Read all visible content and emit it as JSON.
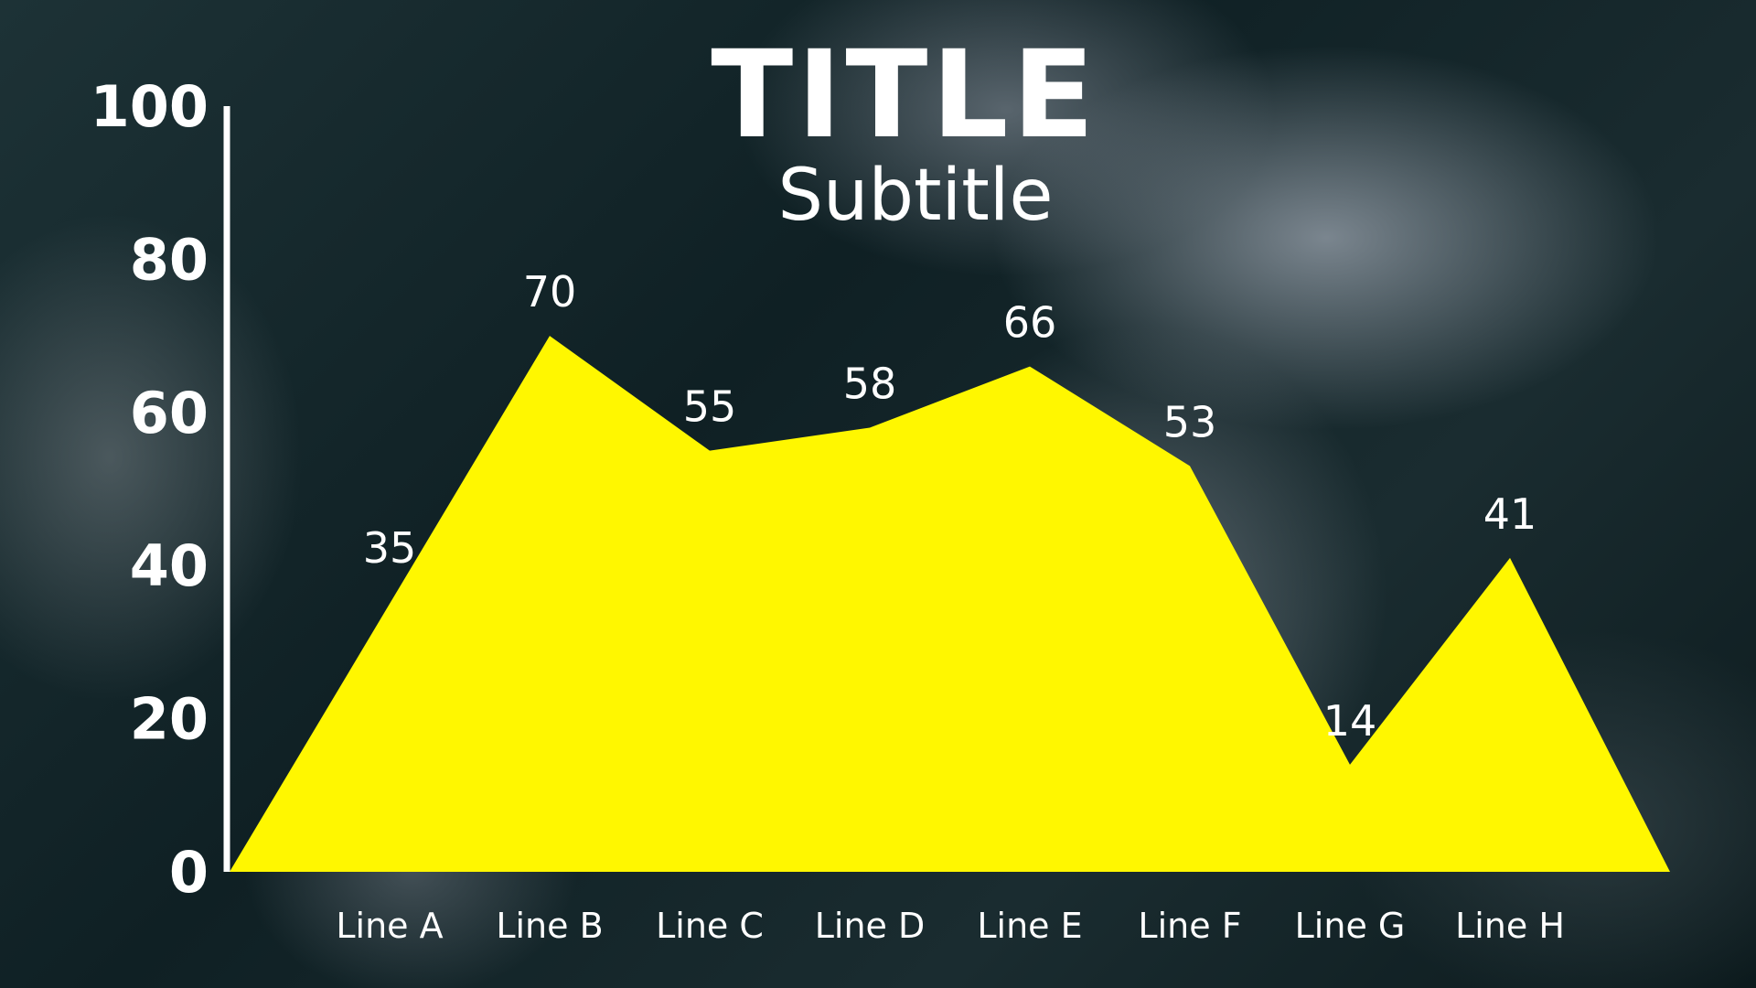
{
  "chart_data": {
    "type": "area",
    "title": "TITLE",
    "subtitle": "Subtitle",
    "categories": [
      "Line A",
      "Line B",
      "Line C",
      "Line D",
      "Line E",
      "Line F",
      "Line G",
      "Line H"
    ],
    "values": [
      35,
      70,
      55,
      58,
      66,
      53,
      14,
      41
    ],
    "data_labels": [
      "35",
      "70",
      "55",
      "58",
      "66",
      "53",
      "14",
      "41"
    ],
    "ylim": [
      0,
      100
    ],
    "yticks": [
      "0",
      "20",
      "40",
      "60",
      "80",
      "100"
    ],
    "xlabel": "",
    "ylabel": "",
    "grid": false,
    "legend": "none",
    "colors": {
      "fill": "#fff700",
      "text": "#ffffff",
      "axis": "#ffffff"
    }
  }
}
